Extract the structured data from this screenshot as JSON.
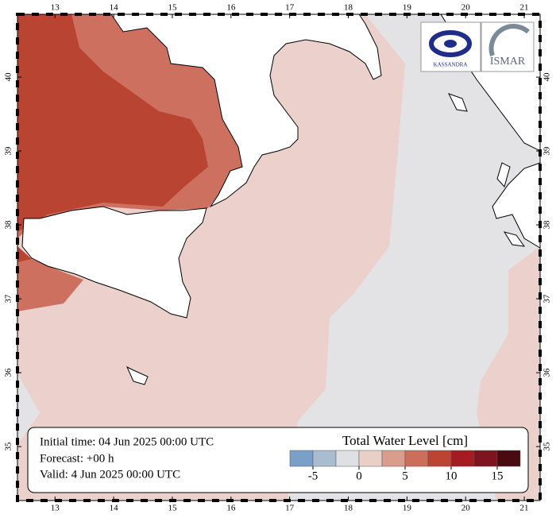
{
  "map": {
    "xlim": [
      12.36,
      21.27
    ],
    "ylim": [
      34.27,
      40.85
    ],
    "lon_ticks": [
      13,
      14,
      15,
      16,
      17,
      18,
      19,
      20,
      21
    ],
    "lat_ticks": [
      35,
      36,
      37,
      38,
      39,
      40
    ],
    "info": [
      "Initial time: 04 Jun 2025 00:00 UTC",
      "Forecast: +00 h",
      "Valid:  4 Jun 2025 00:00 UTC"
    ],
    "logos": [
      "KASSANDRA",
      "ISMAR"
    ],
    "colorbar": {
      "title": "Total Water Level [cm]",
      "range": [
        -7.5,
        17.5
      ],
      "ticks": [
        -5,
        0,
        5,
        10,
        15
      ],
      "colors": [
        "#7ba0c8",
        "#a9bcd0",
        "#dfe0e4",
        "#eacfc9",
        "#d99c8d",
        "#cc6e5a",
        "#bd4433",
        "#a41c22",
        "#7d1420",
        "#4a0a12"
      ]
    }
  }
}
